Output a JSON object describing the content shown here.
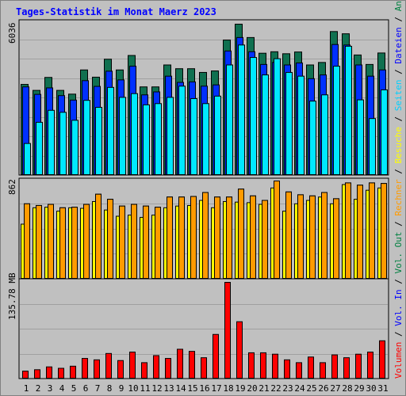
{
  "title": "Tages-Statistik im Monat Maerz 2023",
  "colors": {
    "background": "#c0c0c0",
    "panel": "#c0c0c0",
    "grid": "#a0a0a0",
    "title": "#0000ff",
    "anfragen": "#107050",
    "dateien": "#0030ff",
    "seiten": "#00e8ff",
    "besuche": "#ff9b00",
    "rechner": "#ffff00",
    "volumen": "#ff0000",
    "weekend": "#008040"
  },
  "chart_data": [
    {
      "type": "bar",
      "panel": "hits",
      "ymax_label": "6036",
      "ylim": [
        0,
        6036
      ],
      "categories": [
        "1",
        "2",
        "3",
        "4",
        "5",
        "6",
        "7",
        "8",
        "9",
        "10",
        "11",
        "12",
        "13",
        "14",
        "15",
        "16",
        "17",
        "18",
        "19",
        "20",
        "21",
        "22",
        "23",
        "24",
        "25",
        "26",
        "27",
        "28",
        "29",
        "30",
        "31"
      ],
      "weekend_days": [
        4,
        5,
        11,
        12,
        18,
        19,
        25,
        26
      ],
      "series": [
        {
          "name": "Anfragen",
          "values": [
            3620,
            3380,
            3900,
            3380,
            3230,
            4200,
            3910,
            4630,
            4200,
            4780,
            3520,
            3520,
            4400,
            4250,
            4250,
            4100,
            4160,
            5400,
            6036,
            5500,
            4870,
            4930,
            4850,
            4920,
            4400,
            4500,
            5740,
            5650,
            4800,
            4420,
            4880
          ]
        },
        {
          "name": "Dateien",
          "values": [
            3520,
            3220,
            3480,
            3170,
            2990,
            3770,
            3540,
            4150,
            3800,
            4350,
            3200,
            3320,
            3950,
            3700,
            3720,
            3550,
            3600,
            4960,
            5500,
            4930,
            4420,
            4500,
            4400,
            4480,
            3850,
            4000,
            5220,
            5200,
            4400,
            3950,
            4200
          ]
        },
        {
          "name": "Seiten",
          "values": [
            1250,
            2100,
            2580,
            2500,
            2180,
            2980,
            2700,
            3500,
            3100,
            3250,
            2800,
            2850,
            3100,
            3550,
            3050,
            2850,
            3150,
            4400,
            5200,
            4700,
            4000,
            4650,
            4100,
            3950,
            2950,
            3200,
            4350,
            5150,
            3000,
            2250,
            3400
          ]
        }
      ],
      "ylabels_right": [
        "Anfragen",
        "Dateien",
        "Seiten"
      ]
    },
    {
      "type": "bar",
      "panel": "visits",
      "ymax_label": "862",
      "ylim": [
        0,
        862
      ],
      "series": [
        {
          "name": "Besuche",
          "values": [
            660,
            645,
            655,
            625,
            630,
            655,
            745,
            700,
            640,
            655,
            640,
            630,
            720,
            720,
            725,
            760,
            720,
            720,
            790,
            730,
            690,
            862,
            765,
            740,
            730,
            760,
            705,
            845,
            825,
            845,
            840
          ]
        },
        {
          "name": "Rechner",
          "values": [
            480,
            625,
            630,
            595,
            625,
            620,
            680,
            605,
            550,
            560,
            540,
            560,
            625,
            640,
            645,
            690,
            625,
            680,
            675,
            670,
            655,
            800,
            595,
            660,
            690,
            720,
            660,
            830,
            700,
            780,
            800
          ]
        }
      ],
      "ylabels_right": [
        "Besuche",
        "Rechner",
        "Vol. Out"
      ]
    },
    {
      "type": "bar",
      "panel": "volume",
      "ymax_label": "135.78 MB",
      "ylim": [
        0,
        135.78
      ],
      "series": [
        {
          "name": "Volumen",
          "values": [
            10,
            12,
            16,
            14,
            17,
            28,
            26,
            35,
            25,
            37,
            22,
            32,
            28,
            41,
            38,
            29,
            62,
            135.78,
            80,
            36,
            36,
            34,
            26,
            22,
            30,
            22,
            33,
            29,
            34,
            37,
            53
          ]
        }
      ],
      "ylabels_right": [
        "Vol. In",
        "Volumen"
      ]
    }
  ]
}
